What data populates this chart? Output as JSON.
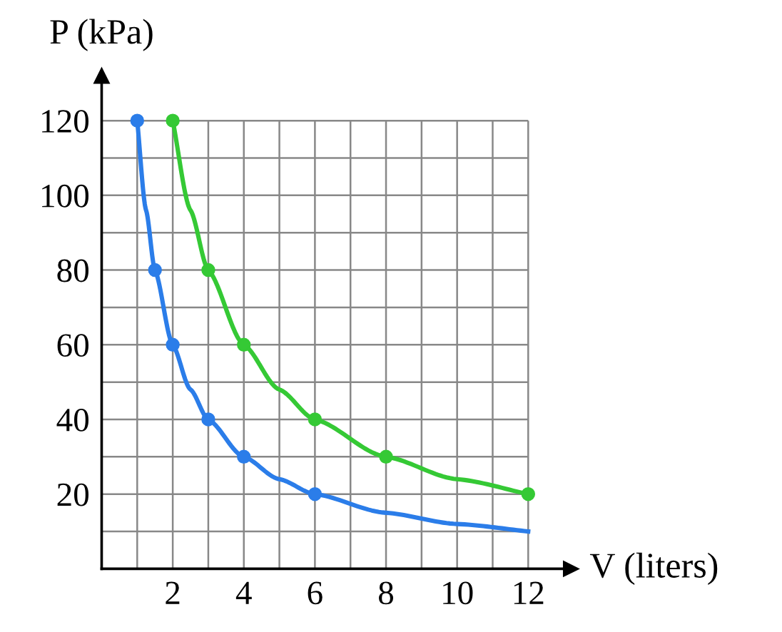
{
  "chart_data": {
    "type": "line",
    "xlabel": "V (liters)",
    "ylabel": "P (kPa)",
    "xlim": [
      0,
      13.2
    ],
    "ylim": [
      0,
      132
    ],
    "xticks": [
      {
        "value": 1,
        "label": null
      },
      2,
      {
        "value": 3,
        "label": null
      },
      4,
      {
        "value": 5,
        "label": null
      },
      6,
      {
        "value": 7,
        "label": null
      },
      8,
      {
        "value": 9,
        "label": null
      },
      10,
      {
        "value": 11,
        "label": null
      },
      12
    ],
    "yticks": [
      {
        "value": 10,
        "label": null
      },
      20,
      {
        "value": 30,
        "label": null
      },
      40,
      {
        "value": 50,
        "label": null
      },
      60,
      {
        "value": 70,
        "label": null
      },
      80,
      {
        "value": 90,
        "label": null
      },
      100,
      {
        "value": 110,
        "label": null
      },
      120
    ],
    "grid": true,
    "series": [
      {
        "color": "#2b7de9",
        "marker": "none",
        "x": [
          1,
          1.25,
          1.5,
          2,
          2.5,
          3,
          4,
          5,
          6,
          8,
          10,
          12
        ],
        "values": [
          120,
          96,
          80,
          60,
          48,
          40,
          30,
          24,
          20,
          15,
          12,
          10
        ]
      },
      {
        "type": "scatter",
        "color": "#2b7de9",
        "marker": "circle",
        "x": [
          1,
          1.5,
          2,
          3,
          4,
          6
        ],
        "values": [
          120,
          80,
          60,
          40,
          30,
          20
        ]
      },
      {
        "color": "#35c935",
        "marker": "none",
        "x": [
          2,
          2.5,
          3,
          4,
          5,
          6,
          8,
          10,
          12
        ],
        "values": [
          120,
          96,
          80,
          60,
          48,
          40,
          30,
          24,
          20
        ]
      },
      {
        "type": "scatter",
        "color": "#35c935",
        "marker": "circle",
        "x": [
          2,
          3,
          4,
          6,
          8,
          12
        ],
        "values": [
          120,
          80,
          60,
          40,
          30,
          20
        ]
      }
    ]
  }
}
